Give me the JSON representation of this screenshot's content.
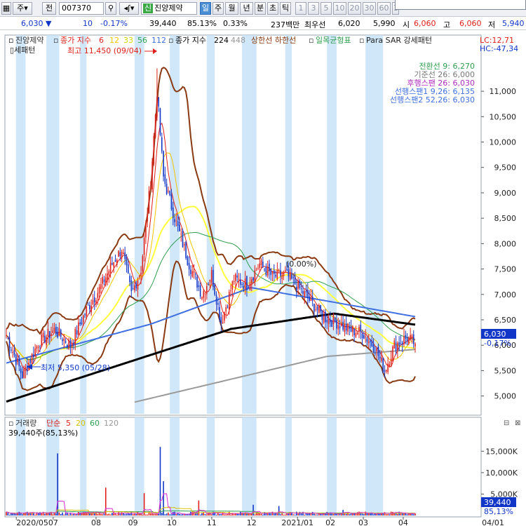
{
  "toolbar": {
    "type_label": "주",
    "prefix_label": "전",
    "code": "007370",
    "name": "진양제약",
    "name_badge": "신",
    "periods": [
      "일",
      "주",
      "월",
      "년",
      "분",
      "초",
      "틱"
    ],
    "active_period": "일",
    "intervals": [
      "1",
      "3",
      "5",
      "10",
      "20",
      "30",
      "60",
      "1"
    ]
  },
  "quote": {
    "price": "6,030",
    "change": "10",
    "change_pct": "-0.17%",
    "volume": "39,440",
    "volume_ratio": "85.13%",
    "turnover": "0.33%",
    "amount": "237백만",
    "bid_label": "최우선",
    "bid1": "6,020",
    "bid2": "5,990",
    "open_label": "시",
    "open": "6,060",
    "high_label": "고",
    "high": "6,060",
    "low_label": "저",
    "low": "5,940"
  },
  "legend": {
    "name": "진양제약",
    "ma_label": "종가 지수",
    "ma_periods": [
      "6",
      "12",
      "33",
      "56",
      "112"
    ],
    "ma2_label": "종가 지수",
    "ma2_periods": [
      "224",
      "448"
    ],
    "band_label": "상한선 하한선",
    "ichimoku_label": "일목균형표",
    "sar_label": "Para SAR 강세패턴",
    "vol_label": "거래량",
    "vol_ma_label": "단순",
    "vol_ma_periods": [
      "5",
      "20",
      "60",
      "120"
    ],
    "vol_value": "39,440주(85,13%)"
  },
  "colors": {
    "up": "#e0201a",
    "down": "#1237c8",
    "ma6": "#e0201a",
    "ma12": "#f5c400",
    "ma33": "#ffff3c",
    "ma56": "#2e9e4f",
    "ma112": "#3f6fe0",
    "ma224": "#000000",
    "ma448": "#9a9a9a",
    "band": "#8a3a12",
    "highlight": "#c7e3f7"
  },
  "lc_hc": [
    "LC:12,71",
    "HC:-47,34"
  ],
  "annotations": {
    "high": "최고 11,450 (09/04)",
    "low": "최저 5,350 (05/28)",
    "flat": "(0.00%)",
    "price_tag": "6,030",
    "price_pct": "-0,17%",
    "vol_tag": "39,440",
    "vol_pct": "85,13%"
  },
  "ichimoku_info": [
    "전환선 9: 6,270",
    "기준선 26: 6,000",
    "후행스팬 26: 6,030",
    "선행스팬1 9,26: 6,135",
    "선행스팬2 52,26: 6,030"
  ],
  "chart_data": {
    "type": "candlestick",
    "price_axis": {
      "ticks": [
        5000,
        5500,
        6000,
        6500,
        7000,
        7500,
        8000,
        8500,
        9000,
        9500,
        10000,
        10500,
        11000
      ],
      "labels": [
        "5,000",
        "5,500",
        "6,000",
        "6,500",
        "7,000",
        "7,500",
        "8,000",
        "8,500",
        "9,000",
        "9,500",
        "10,000",
        "10,500",
        "11,000"
      ],
      "ylim": [
        4650,
        11650
      ]
    },
    "volume_axis": {
      "ticks": [
        5000,
        10000,
        15000
      ],
      "labels": [
        "5,000K",
        "10,000K",
        "15,000K"
      ],
      "ylim": [
        0,
        18000
      ]
    },
    "x_axis": {
      "labels": [
        "2020/05",
        "07",
        "08",
        "09",
        "10",
        "11",
        "12",
        "2021/01",
        "02",
        "03",
        "04",
        "04/01"
      ]
    },
    "ohlc_anchors": [
      [
        0,
        6200
      ],
      [
        10,
        5400
      ],
      [
        20,
        6050
      ],
      [
        30,
        6300
      ],
      [
        40,
        6000
      ],
      [
        50,
        6700
      ],
      [
        58,
        7100
      ],
      [
        66,
        7600
      ],
      [
        72,
        7900
      ],
      [
        78,
        7000
      ],
      [
        84,
        7500
      ],
      [
        90,
        9200
      ],
      [
        94,
        11000
      ],
      [
        98,
        9300
      ],
      [
        106,
        8400
      ],
      [
        114,
        7600
      ],
      [
        122,
        7000
      ],
      [
        128,
        7400
      ],
      [
        134,
        6450
      ],
      [
        142,
        7300
      ],
      [
        150,
        7200
      ],
      [
        158,
        7600
      ],
      [
        166,
        7350
      ],
      [
        174,
        7400
      ],
      [
        182,
        7150
      ],
      [
        190,
        6850
      ],
      [
        198,
        6550
      ],
      [
        206,
        6450
      ],
      [
        214,
        6300
      ],
      [
        222,
        6250
      ],
      [
        230,
        5950
      ],
      [
        236,
        5500
      ],
      [
        242,
        6000
      ],
      [
        250,
        6150
      ],
      [
        255,
        6030
      ]
    ],
    "n_candles": 256,
    "volume_spikes": [
      [
        32,
        14500
      ],
      [
        86,
        5200
      ],
      [
        96,
        16000
      ],
      [
        98,
        8000
      ],
      [
        62,
        6500
      ],
      [
        120,
        3500
      ],
      [
        154,
        2500
      ],
      [
        170,
        2200
      ],
      [
        210,
        1300
      ],
      [
        240,
        900
      ]
    ],
    "highlight_periods": [
      [
        6,
        12
      ],
      [
        25,
        33
      ],
      [
        46,
        50
      ],
      [
        80,
        86
      ],
      [
        102,
        108
      ],
      [
        125,
        130
      ],
      [
        147,
        156
      ],
      [
        174,
        178
      ],
      [
        200,
        206
      ],
      [
        224,
        235
      ]
    ]
  }
}
